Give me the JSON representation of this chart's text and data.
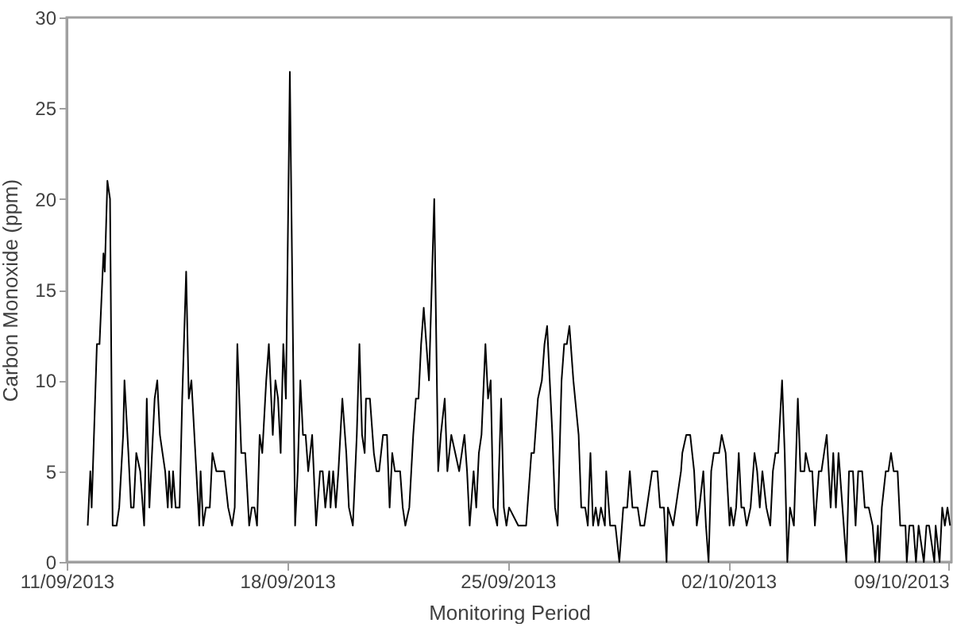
{
  "chart_data": {
    "type": "line",
    "xlabel": "Monitoring Period",
    "ylabel": "Carbon Monoxide (ppm)",
    "xlim": [
      "2013-09-11T00:00",
      "2013-10-09T02:00"
    ],
    "xticks": [
      {
        "value": "2013-09-11T00:00",
        "label": "11/09/2013"
      },
      {
        "value": "2013-09-18T00:00",
        "label": "18/09/2013"
      },
      {
        "value": "2013-09-25T00:00",
        "label": "25/09/2013"
      },
      {
        "value": "2013-10-02T00:00",
        "label": "02/10/2013"
      },
      {
        "value": "2013-10-09T00:00",
        "label": "09/10/2013"
      }
    ],
    "ylim": [
      0,
      30
    ],
    "yticks": [
      0,
      5,
      10,
      15,
      20,
      25,
      30
    ],
    "grid": false,
    "marker": "none",
    "line_style": "solid",
    "x": [
      "2013-09-11T16:00",
      "2013-09-11T18:00",
      "2013-09-11T19:00",
      "2013-09-11T23:00",
      "2013-09-12T01:00",
      "2013-09-12T04:00",
      "2013-09-12T05:00",
      "2013-09-12T07:00",
      "2013-09-12T09:00",
      "2013-09-12T11:00",
      "2013-09-12T14:00",
      "2013-09-12T16:00",
      "2013-09-12T19:00",
      "2013-09-12T20:00",
      "2013-09-12T23:00",
      "2013-09-13T01:00",
      "2013-09-13T03:00",
      "2013-09-13T05:00",
      "2013-09-13T08:00",
      "2013-09-13T11:00",
      "2013-09-13T13:00",
      "2013-09-13T15:00",
      "2013-09-13T17:00",
      "2013-09-13T19:00",
      "2013-09-13T21:00",
      "2013-09-13T23:00",
      "2013-09-14T01:00",
      "2013-09-14T03:00",
      "2013-09-14T05:00",
      "2013-09-14T06:00",
      "2013-09-14T08:00",
      "2013-09-14T09:00",
      "2013-09-14T11:00",
      "2013-09-14T14:00",
      "2013-09-14T16:00",
      "2013-09-14T19:00",
      "2013-09-14T21:00",
      "2013-09-14T23:00",
      "2013-09-15T02:00",
      "2013-09-15T05:00",
      "2013-09-15T06:00",
      "2013-09-15T08:00",
      "2013-09-15T10:00",
      "2013-09-15T13:00",
      "2013-09-15T15:00",
      "2013-09-15T18:00",
      "2013-09-16T00:00",
      "2013-09-16T03:00",
      "2013-09-16T06:00",
      "2013-09-16T08:00",
      "2013-09-16T10:00",
      "2013-09-16T13:00",
      "2013-09-16T16:00",
      "2013-09-16T19:00",
      "2013-09-16T21:00",
      "2013-09-16T23:00",
      "2013-09-17T01:00",
      "2013-09-17T03:00",
      "2013-09-17T05:00",
      "2013-09-17T08:00",
      "2013-09-17T10:00",
      "2013-09-17T13:00",
      "2013-09-17T15:00",
      "2013-09-17T17:00",
      "2013-09-17T19:00",
      "2013-09-17T21:00",
      "2013-09-17T23:00",
      "2013-09-18T02:00",
      "2013-09-18T06:00",
      "2013-09-18T08:00",
      "2013-09-18T10:00",
      "2013-09-18T12:00",
      "2013-09-18T14:00",
      "2013-09-18T16:00",
      "2013-09-18T19:00",
      "2013-09-18T22:00",
      "2013-09-19T01:00",
      "2013-09-19T03:00",
      "2013-09-19T05:00",
      "2013-09-19T08:00",
      "2013-09-19T09:00",
      "2013-09-19T11:00",
      "2013-09-19T13:00",
      "2013-09-19T15:00",
      "2013-09-19T18:00",
      "2013-09-19T21:00",
      "2013-09-19T23:00",
      "2013-09-20T02:00",
      "2013-09-20T05:00",
      "2013-09-20T07:00",
      "2013-09-20T09:00",
      "2013-09-20T11:00",
      "2013-09-20T12:00",
      "2013-09-20T15:00",
      "2013-09-20T18:00",
      "2013-09-20T20:00",
      "2013-09-20T22:00",
      "2013-09-21T01:00",
      "2013-09-21T04:00",
      "2013-09-21T06:00",
      "2013-09-21T08:00",
      "2013-09-21T10:00",
      "2013-09-21T12:00",
      "2013-09-21T14:00",
      "2013-09-21T16:00",
      "2013-09-21T18:00",
      "2013-09-21T21:00",
      "2013-09-22T00:00",
      "2013-09-22T02:00",
      "2013-09-22T04:00",
      "2013-09-22T06:00",
      "2013-09-22T08:00",
      "2013-09-22T10:00",
      "2013-09-22T12:00",
      "2013-09-22T16:00",
      "2013-09-22T19:00",
      "2013-09-22T21:00",
      "2013-09-23T00:00",
      "2013-09-23T02:00",
      "2013-09-23T05:00",
      "2013-09-23T08:00",
      "2013-09-23T11:00",
      "2013-09-23T13:00",
      "2013-09-23T15:00",
      "2013-09-23T17:00",
      "2013-09-23T19:00",
      "2013-09-23T22:00",
      "2013-09-24T00:00",
      "2013-09-24T02:00",
      "2013-09-24T04:00",
      "2013-09-24T07:00",
      "2013-09-24T09:00",
      "2013-09-24T11:00",
      "2013-09-24T13:00",
      "2013-09-24T16:00",
      "2013-09-24T19:00",
      "2013-09-24T21:00",
      "2013-09-24T23:00",
      "2013-09-25T01:00",
      "2013-09-25T08:00",
      "2013-09-25T14:00",
      "2013-09-25T18:00",
      "2013-09-25T20:00",
      "2013-09-25T23:00",
      "2013-09-26T02:00",
      "2013-09-26T04:00",
      "2013-09-26T06:00",
      "2013-09-26T08:00",
      "2013-09-26T10:00",
      "2013-09-26T12:00",
      "2013-09-26T14:00",
      "2013-09-26T17:00",
      "2013-09-26T19:00",
      "2013-09-26T21:00",
      "2013-09-26T23:00",
      "2013-09-27T02:00",
      "2013-09-27T06:00",
      "2013-09-27T08:00",
      "2013-09-27T11:00",
      "2013-09-27T13:00",
      "2013-09-27T15:00",
      "2013-09-27T17:00",
      "2013-09-27T19:00",
      "2013-09-27T21:00",
      "2013-09-27T23:00",
      "2013-09-28T02:00",
      "2013-09-28T03:00",
      "2013-09-28T06:00",
      "2013-09-28T10:00",
      "2013-09-28T13:00",
      "2013-09-28T16:00",
      "2013-09-28T19:00",
      "2013-09-28T21:00",
      "2013-09-28T23:00",
      "2013-09-29T03:00",
      "2013-09-29T05:00",
      "2013-09-29T08:00",
      "2013-09-29T10:00",
      "2013-09-29T14:00",
      "2013-09-29T18:00",
      "2013-09-29T20:00",
      "2013-09-29T23:00",
      "2013-09-30T01:00",
      "2013-09-30T02:00",
      "2013-09-30T06:00",
      "2013-09-30T08:00",
      "2013-09-30T12:00",
      "2013-09-30T13:00",
      "2013-09-30T16:00",
      "2013-09-30T19:00",
      "2013-09-30T22:00",
      "2013-10-01T00:00",
      "2013-10-01T02:00",
      "2013-10-01T05:00",
      "2013-10-01T07:00",
      "2013-10-01T09:00",
      "2013-10-01T11:00",
      "2013-10-01T13:00",
      "2013-10-01T17:00",
      "2013-10-01T19:00",
      "2013-10-01T22:00",
      "2013-10-02T01:00",
      "2013-10-02T02:00",
      "2013-10-02T04:00",
      "2013-10-02T06:00",
      "2013-10-02T08:00",
      "2013-10-02T10:00",
      "2013-10-02T12:00",
      "2013-10-02T14:00",
      "2013-10-02T17:00",
      "2013-10-02T20:00",
      "2013-10-02T22:00",
      "2013-10-03T00:00",
      "2013-10-03T02:00",
      "2013-10-03T05:00",
      "2013-10-03T08:00",
      "2013-10-03T10:00",
      "2013-10-03T12:00",
      "2013-10-03T14:00",
      "2013-10-03T17:00",
      "2013-10-03T19:00",
      "2013-10-03T21:00",
      "2013-10-03T23:00",
      "2013-10-04T02:00",
      "2013-10-04T05:00",
      "2013-10-04T07:00",
      "2013-10-04T10:00",
      "2013-10-04T11:00",
      "2013-10-04T14:00",
      "2013-10-04T16:00",
      "2013-10-04T18:00",
      "2013-10-04T21:00",
      "2013-10-04T23:00",
      "2013-10-05T03:00",
      "2013-10-05T06:00",
      "2013-10-05T08:00",
      "2013-10-05T10:00",
      "2013-10-05T12:00",
      "2013-10-05T15:00",
      "2013-10-05T18:00",
      "2013-10-05T20:00",
      "2013-10-05T23:00",
      "2013-10-06T01:00",
      "2013-10-06T03:00",
      "2013-10-06T06:00",
      "2013-10-06T08:00",
      "2013-10-06T11:00",
      "2013-10-06T14:00",
      "2013-10-06T16:00",
      "2013-10-06T18:00",
      "2013-10-06T19:00",
      "2013-10-06T21:00",
      "2013-10-07T00:00",
      "2013-10-07T02:00",
      "2013-10-07T04:00",
      "2013-10-07T06:00",
      "2013-10-07T09:00",
      "2013-10-07T11:00",
      "2013-10-07T15:00",
      "2013-10-07T16:00",
      "2013-10-07T18:00",
      "2013-10-07T21:00",
      "2013-10-07T23:00",
      "2013-10-08T01:00",
      "2013-10-08T05:00",
      "2013-10-08T07:00",
      "2013-10-08T09:00",
      "2013-10-08T13:00",
      "2013-10-08T14:00",
      "2013-10-08T17:00",
      "2013-10-08T19:00",
      "2013-10-08T21:00",
      "2013-10-08T23:00",
      "2013-10-09T01:00"
    ],
    "series": [
      {
        "color": "#000000",
        "values": [
          2,
          5,
          3,
          12,
          12,
          17,
          16,
          21,
          20,
          2,
          2,
          3,
          7,
          10,
          6,
          3,
          3,
          6,
          5,
          2,
          9,
          3,
          6,
          9,
          10,
          7,
          6,
          5,
          3,
          5,
          3,
          5,
          3,
          3,
          9,
          16,
          9,
          10,
          6,
          2,
          5,
          2,
          3,
          3,
          6,
          5,
          5,
          3,
          2,
          3,
          12,
          6,
          6,
          2,
          3,
          3,
          2,
          7,
          6,
          10,
          12,
          7,
          10,
          9,
          6,
          12,
          9,
          27,
          2,
          5,
          10,
          7,
          7,
          5,
          7,
          2,
          5,
          5,
          3,
          5,
          3,
          5,
          3,
          5,
          9,
          6,
          3,
          2,
          7,
          12,
          7,
          6,
          9,
          9,
          6,
          5,
          5,
          7,
          7,
          3,
          6,
          5,
          5,
          5,
          3,
          2,
          3,
          7,
          9,
          9,
          12,
          14,
          12,
          10,
          20,
          5,
          7,
          9,
          5,
          7,
          6,
          5,
          6,
          7,
          5,
          2,
          5,
          3,
          6,
          7,
          12,
          9,
          10,
          3,
          2,
          9,
          3,
          2,
          3,
          2,
          2,
          6,
          6,
          9,
          10,
          12,
          13,
          10,
          7,
          3,
          2,
          10,
          12,
          12,
          13,
          10,
          7,
          3,
          3,
          2,
          6,
          2,
          3,
          2,
          3,
          2,
          5,
          2,
          2,
          0,
          3,
          3,
          5,
          3,
          3,
          2,
          2,
          3,
          5,
          5,
          3,
          3,
          0,
          3,
          2,
          3,
          5,
          6,
          7,
          7,
          5,
          2,
          3,
          5,
          2,
          0,
          5,
          6,
          6,
          7,
          6,
          2,
          3,
          2,
          3,
          6,
          3,
          3,
          2,
          3,
          6,
          5,
          3,
          5,
          3,
          2,
          5,
          6,
          6,
          10,
          6,
          0,
          3,
          2,
          9,
          5,
          5,
          6,
          5,
          5,
          2,
          5,
          5,
          7,
          3,
          6,
          3,
          6,
          3,
          0,
          5,
          5,
          2,
          5,
          5,
          3,
          3,
          2,
          0,
          2,
          0,
          3,
          5,
          5,
          6,
          5,
          5,
          2,
          2,
          0,
          2,
          2,
          0,
          2,
          0,
          2,
          2,
          0,
          2,
          0,
          3,
          2,
          3,
          2
        ]
      }
    ]
  }
}
